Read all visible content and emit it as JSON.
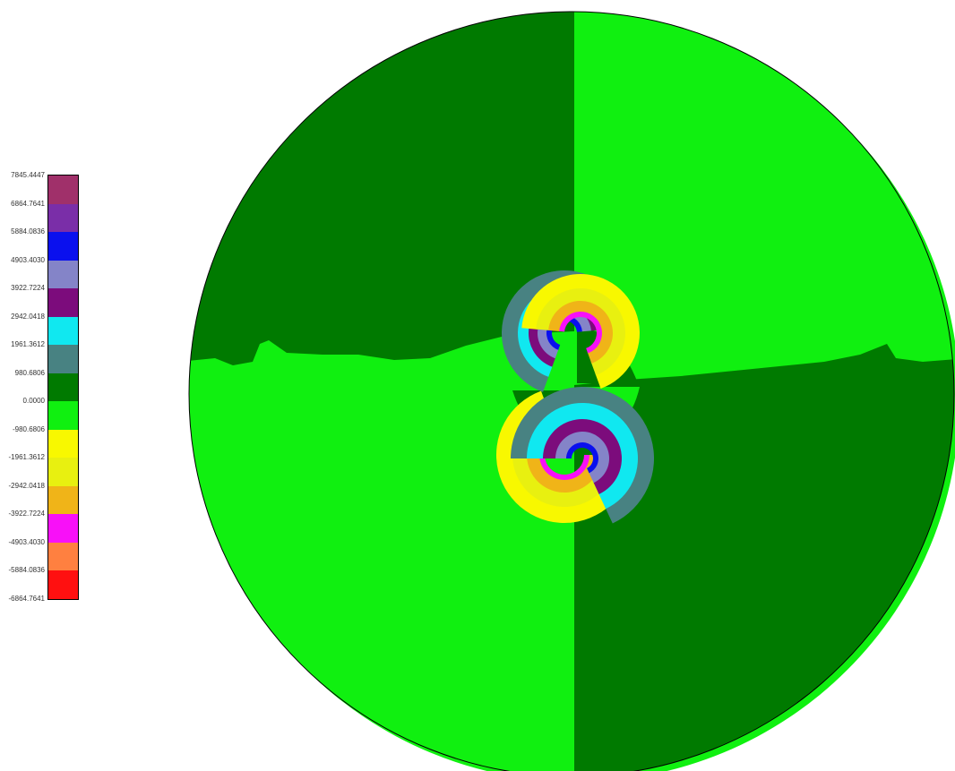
{
  "chart_data": {
    "type": "heatmap",
    "title": "",
    "xlabel": "",
    "ylabel": "",
    "colorbar": {
      "levels": [
        {
          "value": "7845.4447",
          "color": "#a0306a"
        },
        {
          "value": "6864.7641",
          "color": "#7a2ea8"
        },
        {
          "value": "5884.0836",
          "color": "#0a10ee"
        },
        {
          "value": "4903.4030",
          "color": "#8484c8"
        },
        {
          "value": "3922.7224",
          "color": "#7c0c7c"
        },
        {
          "value": "2942.0418",
          "color": "#10e8f0"
        },
        {
          "value": "1961.3612",
          "color": "#488282"
        },
        {
          "value": "980.6806",
          "color": "#007a00"
        },
        {
          "value": "0.0000",
          "color": "#10f010"
        },
        {
          "value": "-980.6806",
          "color": "#f8f800"
        },
        {
          "value": "-1961.3612",
          "color": "#e8f010"
        },
        {
          "value": "-2942.0418",
          "color": "#f0b418"
        },
        {
          "value": "-3922.7224",
          "color": "#f810f8"
        },
        {
          "value": "-4903.4030",
          "color": "#ff8040"
        },
        {
          "value": "-5884.0836",
          "color": "#ff1010"
        },
        {
          "value": "-6864.7641",
          "color": ""
        }
      ]
    },
    "field": {
      "shape": "disk",
      "hole": "central opening",
      "lobes": [
        {
          "quadrant": "top-left",
          "sign": "positive",
          "colors": [
            "#488282",
            "#10e8f0",
            "#7c0c7c",
            "#8484c8",
            "#0a10ee"
          ]
        },
        {
          "quadrant": "top-right",
          "sign": "negative",
          "colors": [
            "#f8f800",
            "#e8f010",
            "#f0b418",
            "#f810f8"
          ]
        },
        {
          "quadrant": "bottom-left",
          "sign": "negative",
          "colors": [
            "#f8f800",
            "#e8f010",
            "#f0b418",
            "#f810f8"
          ]
        },
        {
          "quadrant": "bottom-right",
          "sign": "positive",
          "colors": [
            "#488282",
            "#10e8f0",
            "#7c0c7c",
            "#8484c8",
            "#0a10ee"
          ]
        }
      ]
    }
  }
}
